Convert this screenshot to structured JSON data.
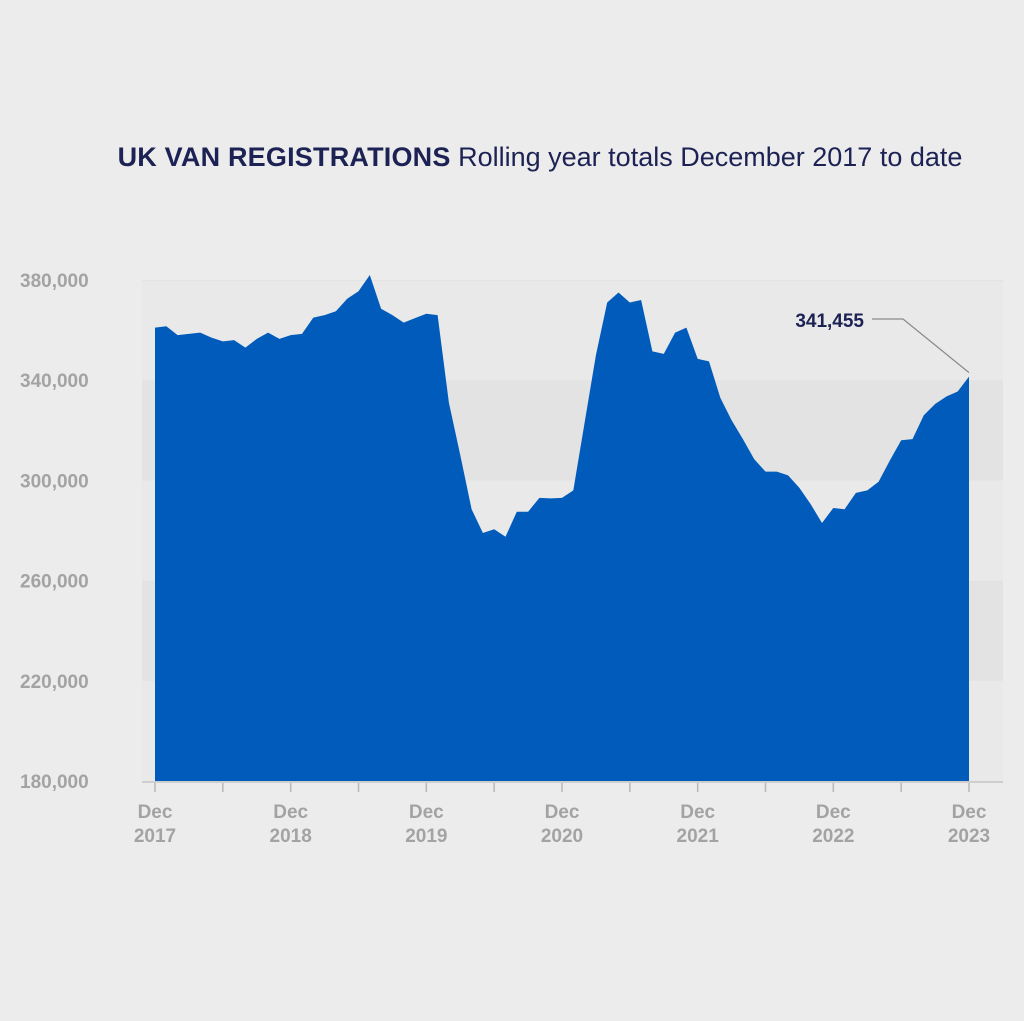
{
  "chart_data": {
    "type": "area",
    "title": "UK VAN REGISTRATIONS",
    "subtitle": "Rolling year totals December 2017 to date",
    "xlabel": "",
    "ylabel": "",
    "ylim": [
      180000,
      380000
    ],
    "yticks": [
      180000,
      220000,
      260000,
      300000,
      340000,
      380000
    ],
    "ytick_labels": [
      "180,000",
      "220,000",
      "260,000",
      "300,000",
      "340,000",
      "380,000"
    ],
    "xlim": [
      0,
      72
    ],
    "xticks": [
      {
        "index": 0,
        "line1": "Dec",
        "line2": "2017"
      },
      {
        "index": 12,
        "line1": "Dec",
        "line2": "2018"
      },
      {
        "index": 24,
        "line1": "Dec",
        "line2": "2019"
      },
      {
        "index": 36,
        "line1": "Dec",
        "line2": "2020"
      },
      {
        "index": 48,
        "line1": "Dec",
        "line2": "2021"
      },
      {
        "index": 60,
        "line1": "Dec",
        "line2": "2022"
      },
      {
        "index": 72,
        "line1": "Dec",
        "line2": "2023"
      }
    ],
    "grid": "alternating horizontal bands",
    "color": "#005bbb",
    "series": [
      {
        "values": [
          361000,
          361500,
          358000,
          358500,
          359000,
          357000,
          355500,
          356000,
          353000,
          356500,
          359000,
          356500,
          358000,
          358500,
          365000,
          366000,
          367500,
          372500,
          375500,
          382000,
          368500,
          366000,
          363000,
          364800,
          366500,
          366000,
          331000,
          310000,
          288500,
          279000,
          280500,
          277500,
          287500,
          287500,
          293000,
          292800,
          293000,
          296000,
          323000,
          350000,
          371000,
          375000,
          371000,
          372000,
          351500,
          350500,
          359000,
          361000,
          348500,
          347500,
          333000,
          324000,
          316500,
          308500,
          303500,
          303500,
          302000,
          297000,
          290500,
          283000,
          289000,
          288500,
          295000,
          296000,
          299500,
          308000,
          316000,
          316500,
          326000,
          330500,
          333500,
          335500,
          341455
        ]
      }
    ],
    "annotations": [
      {
        "index": 72,
        "label": "341,455"
      }
    ]
  }
}
